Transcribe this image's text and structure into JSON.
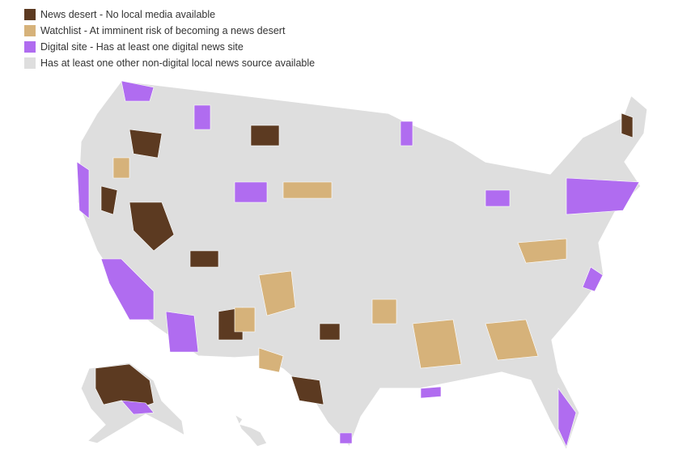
{
  "legend": [
    {
      "label": "News desert - No local media available",
      "color": "#5c3a21"
    },
    {
      "label": "Watchlist - At imminent risk of becoming a news desert",
      "color": "#d6b27a"
    },
    {
      "label": "Digital site - Has at least one digital news site",
      "color": "#b06cf0"
    },
    {
      "label": "Has at least one other non-digital local news source available",
      "color": "#dedede"
    }
  ]
}
